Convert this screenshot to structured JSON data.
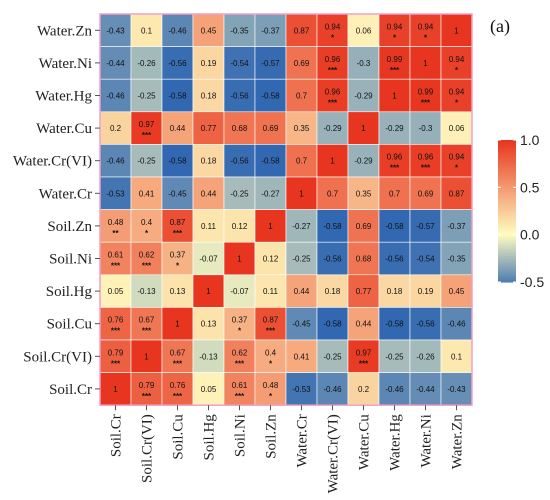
{
  "panel_label": "(a)",
  "colors": {
    "neg": "#2b63b1",
    "mid": "#fffcc0",
    "pos": "#e8351f"
  },
  "chart_data": {
    "type": "heatmap",
    "rows": [
      "Water.Zn",
      "Water.Ni",
      "Water.Hg",
      "Water.Cu",
      "Water.Cr(VI)",
      "Water.Cr",
      "Soil.Zn",
      "Soil.Ni",
      "Soil.Hg",
      "Soil.Cu",
      "Soil.Cr(VI)",
      "Soil.Cr"
    ],
    "columns": [
      "Soil.Cr",
      "Soil.Cr(VI)",
      "Soil.Cu",
      "Soil.Hg",
      "Soil.Ni",
      "Soil.Zn",
      "Water.Cr",
      "Water.Cr(VI)",
      "Water.Cu",
      "Water.Hg",
      "Water.Ni",
      "Water.Zn"
    ],
    "values": [
      [
        -0.43,
        0.1,
        -0.46,
        0.45,
        -0.35,
        -0.37,
        0.87,
        0.94,
        0.06,
        0.94,
        0.94,
        1
      ],
      [
        -0.44,
        -0.26,
        -0.56,
        0.19,
        -0.54,
        -0.57,
        0.69,
        0.96,
        -0.3,
        0.99,
        1,
        0.94
      ],
      [
        -0.46,
        -0.25,
        -0.58,
        0.18,
        -0.56,
        -0.58,
        0.7,
        0.96,
        -0.29,
        1,
        0.99,
        0.94
      ],
      [
        0.2,
        0.97,
        0.44,
        0.77,
        0.68,
        0.69,
        0.35,
        -0.29,
        1,
        -0.29,
        -0.3,
        0.06
      ],
      [
        -0.46,
        -0.25,
        -0.58,
        0.18,
        -0.56,
        -0.58,
        0.7,
        1,
        -0.29,
        0.96,
        0.96,
        0.94
      ],
      [
        -0.53,
        0.41,
        -0.45,
        0.44,
        -0.25,
        -0.27,
        1,
        0.7,
        0.35,
        0.7,
        0.69,
        0.87
      ],
      [
        0.48,
        0.4,
        0.87,
        0.11,
        0.12,
        1,
        -0.27,
        -0.58,
        0.69,
        -0.58,
        -0.57,
        -0.37
      ],
      [
        0.61,
        0.62,
        0.37,
        -0.07,
        1,
        0.12,
        -0.25,
        -0.56,
        0.68,
        -0.56,
        -0.54,
        -0.35
      ],
      [
        0.05,
        -0.13,
        0.13,
        1,
        -0.07,
        0.11,
        0.44,
        0.18,
        0.77,
        0.18,
        0.19,
        0.45
      ],
      [
        0.76,
        0.67,
        1,
        0.13,
        0.37,
        0.87,
        -0.45,
        -0.58,
        0.44,
        -0.58,
        -0.56,
        -0.46
      ],
      [
        0.79,
        1,
        0.67,
        -0.13,
        0.62,
        0.4,
        0.41,
        -0.25,
        0.97,
        -0.25,
        -0.26,
        0.1
      ],
      [
        1,
        0.79,
        0.76,
        0.05,
        0.61,
        0.48,
        -0.53,
        -0.46,
        0.2,
        -0.46,
        -0.44,
        -0.43
      ]
    ],
    "stars": [
      [
        "",
        "",
        "",
        "",
        "",
        "",
        "",
        "*",
        "",
        "*",
        "*",
        ""
      ],
      [
        "",
        "",
        "",
        "",
        "",
        "",
        "",
        "***",
        "",
        "***",
        "",
        "*"
      ],
      [
        "",
        "",
        "",
        "",
        "",
        "",
        "",
        "***",
        "",
        "",
        "***",
        "*"
      ],
      [
        "",
        "***",
        "",
        "",
        "",
        "",
        "",
        "",
        "",
        "",
        "",
        ""
      ],
      [
        "",
        "",
        "",
        "",
        "",
        "",
        "",
        "",
        "",
        "***",
        "***",
        "*"
      ],
      [
        "",
        "",
        "",
        "",
        "",
        "",
        "",
        "",
        "",
        "",
        "",
        ""
      ],
      [
        "**",
        "*",
        "***",
        "",
        "",
        "",
        "",
        "",
        "",
        "",
        "",
        ""
      ],
      [
        "***",
        "***",
        "*",
        "",
        "",
        "",
        "",
        "",
        "",
        "",
        "",
        ""
      ],
      [
        "",
        "",
        "",
        "",
        "",
        "",
        "",
        "",
        "",
        "",
        "",
        ""
      ],
      [
        "***",
        "***",
        "",
        "",
        "*",
        "***",
        "",
        "",
        "",
        "",
        "",
        ""
      ],
      [
        "***",
        "",
        "***",
        "",
        "***",
        "*",
        "",
        "",
        "***",
        "",
        "",
        ""
      ],
      [
        "",
        "***",
        "***",
        "",
        "***",
        "*",
        "",
        "",
        "",
        "",
        "",
        ""
      ]
    ],
    "colorbar": {
      "min": -0.5,
      "max": 1.0,
      "ticks": [
        "1.0",
        "0.5",
        "0.0",
        "-0.5"
      ],
      "tick_values": [
        1.0,
        0.5,
        0.0,
        -0.5
      ]
    }
  }
}
